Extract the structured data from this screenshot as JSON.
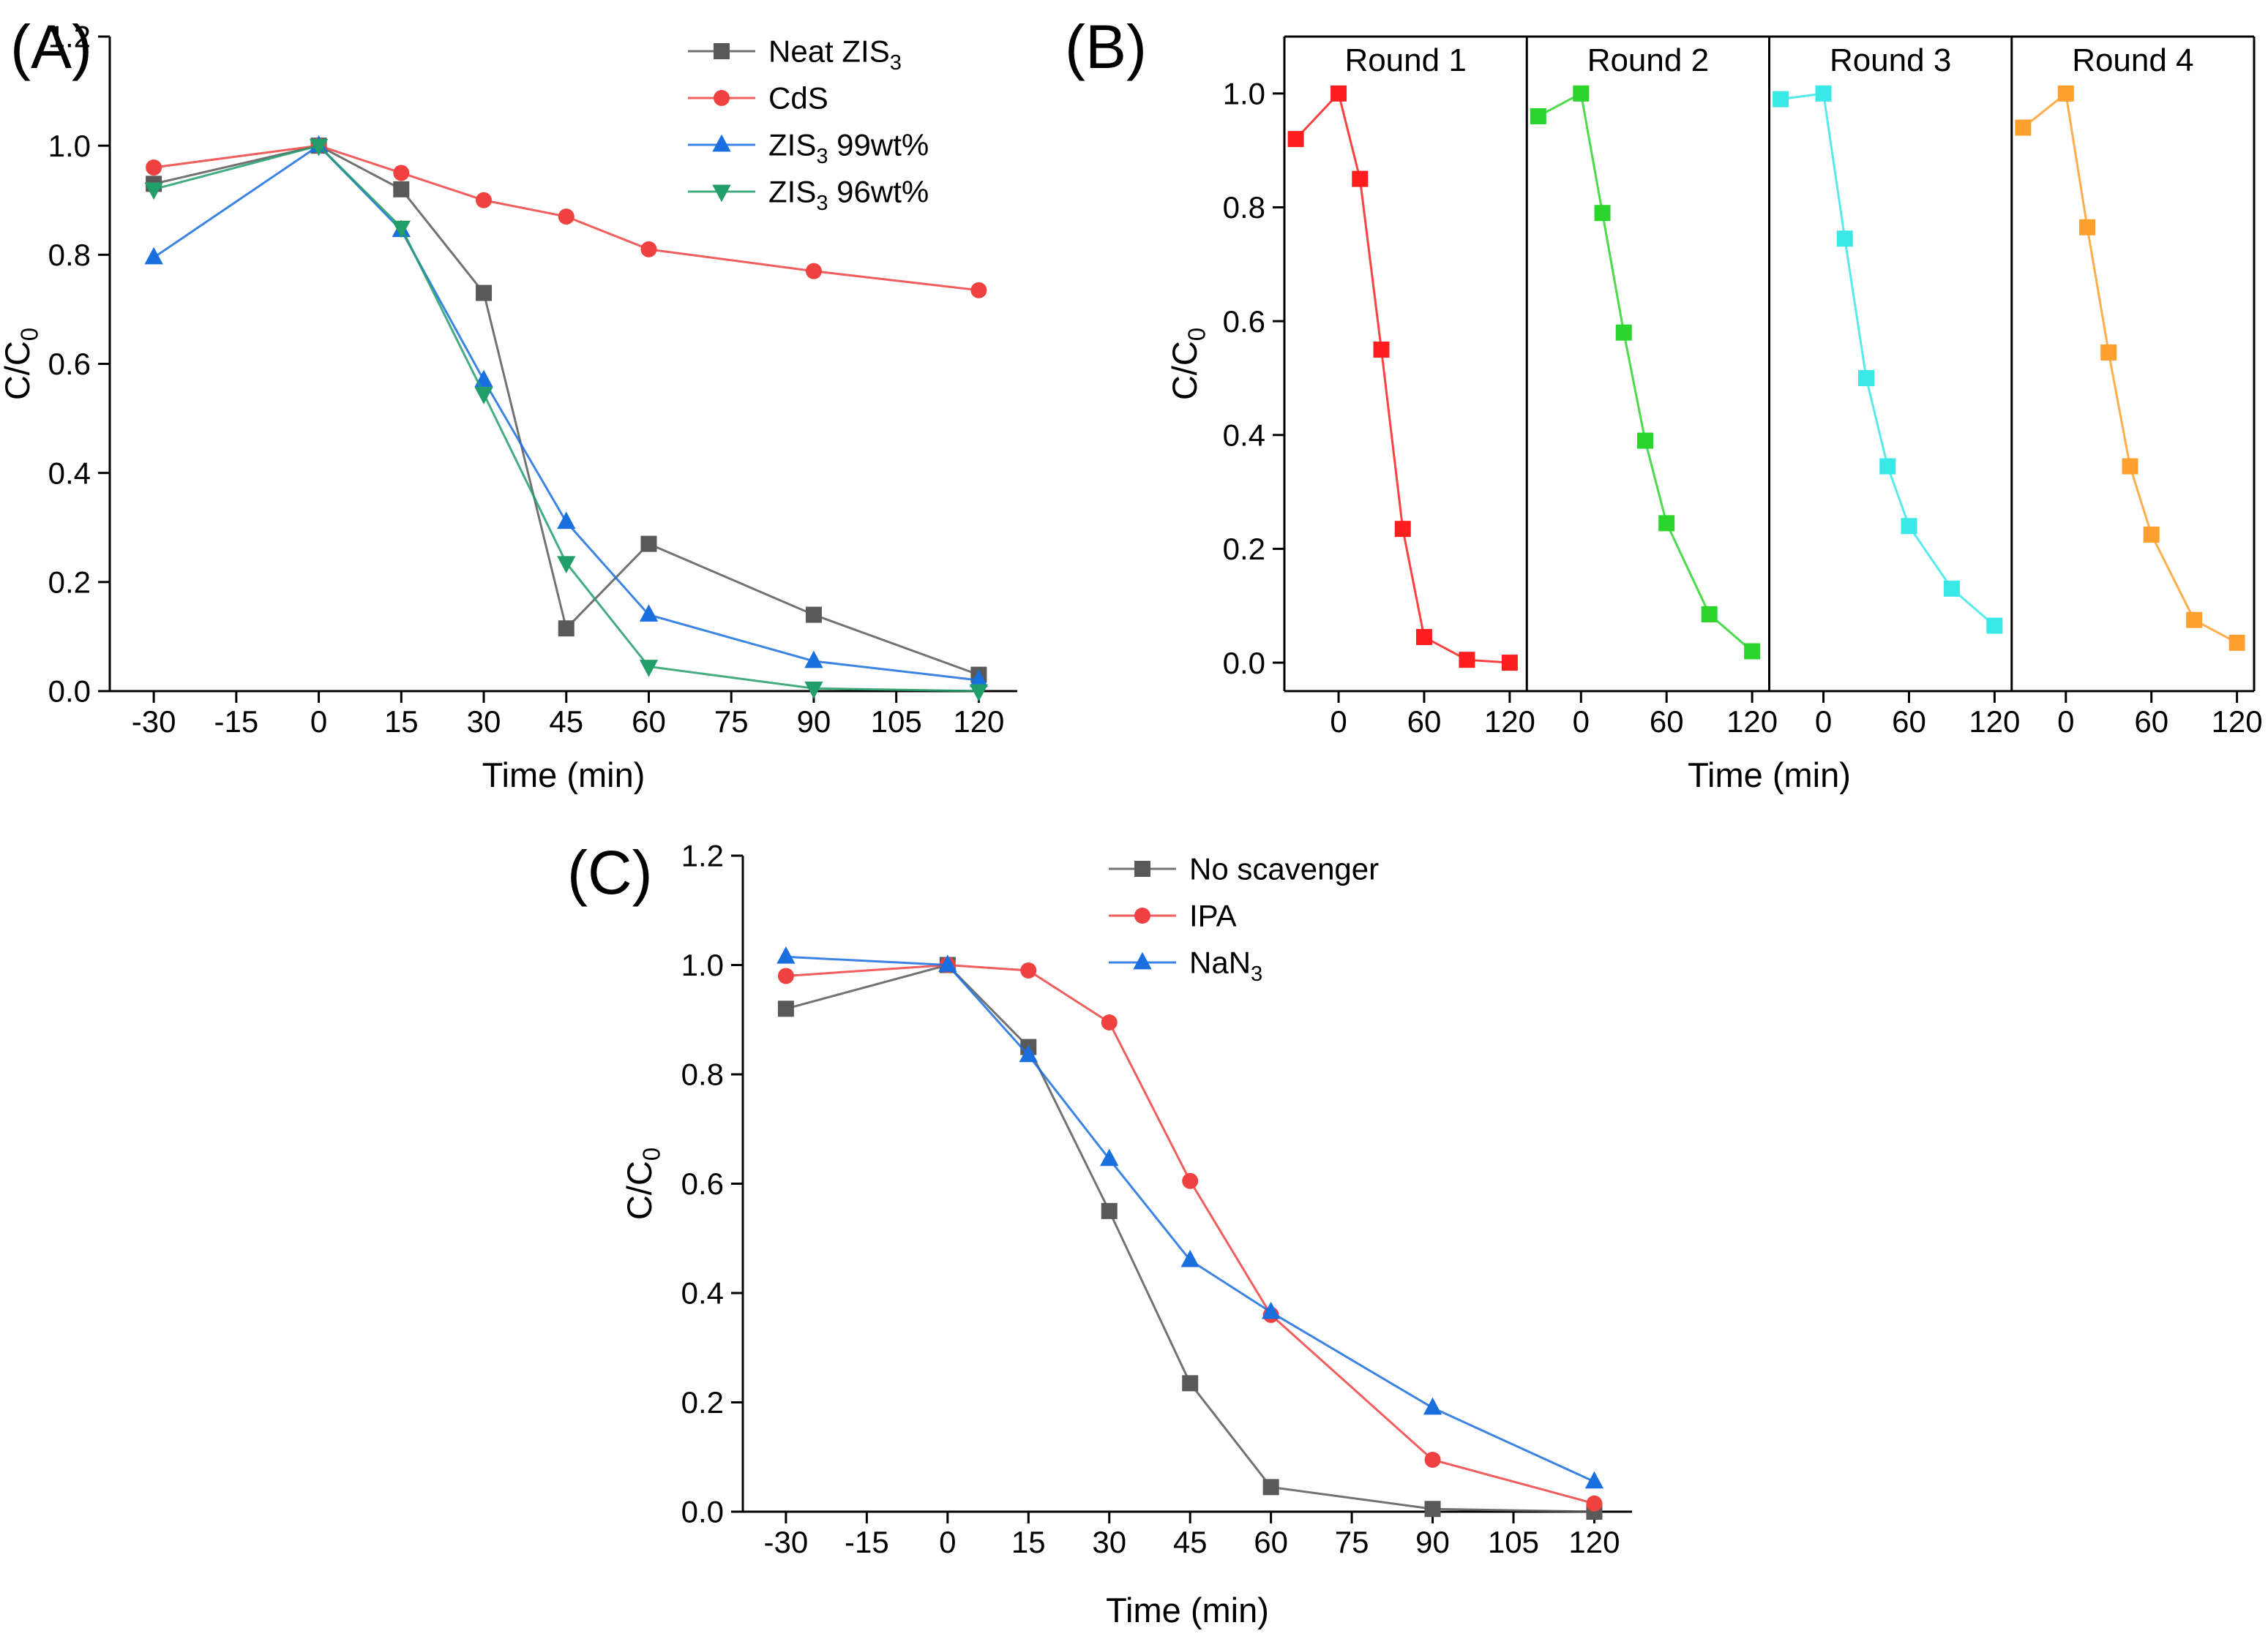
{
  "figure": {
    "background": "#ffffff",
    "panels": [
      {
        "label": "(A)"
      },
      {
        "label": "(B)"
      },
      {
        "label": "(C)"
      }
    ]
  },
  "chart_data": [
    {
      "id": "A",
      "panel_label": "(A)",
      "type": "line",
      "title": "",
      "xlabel": "Time (min)",
      "ylabel": "C/C₀",
      "xlim": [
        -38,
        127
      ],
      "ylim": [
        0,
        1.2
      ],
      "xticks": [
        -30,
        -15,
        0,
        15,
        30,
        45,
        60,
        75,
        90,
        105,
        120
      ],
      "yticks": [
        "0.0",
        "0.2",
        "0.4",
        "0.6",
        "0.8",
        "1.0",
        "1.2"
      ],
      "grid": false,
      "legend_position": "top-right",
      "x": [
        -30,
        0,
        15,
        30,
        45,
        60,
        90,
        120
      ],
      "series": [
        {
          "name": "Neat ZIS₃",
          "marker": "square",
          "color": "#595959",
          "values": [
            0.93,
            1.0,
            0.92,
            0.73,
            0.115,
            0.27,
            0.14,
            0.03
          ]
        },
        {
          "name": "CdS",
          "marker": "circle",
          "color": "#F04141",
          "values": [
            0.96,
            1.0,
            0.95,
            0.9,
            0.87,
            0.81,
            0.77,
            0.735
          ]
        },
        {
          "name": "ZIS₃ 99wt%",
          "marker": "triangle-up",
          "color": "#1A6FDF",
          "values": [
            0.795,
            1.0,
            0.845,
            0.57,
            0.31,
            0.14,
            0.055,
            0.02
          ]
        },
        {
          "name": "ZIS₃ 96wt%",
          "marker": "triangle-down",
          "color": "#229E6B",
          "values": [
            0.92,
            1.0,
            0.85,
            0.545,
            0.235,
            0.045,
            0.005,
            0.0
          ]
        }
      ]
    },
    {
      "id": "B",
      "panel_label": "(B)",
      "type": "line",
      "title": "",
      "xlabel": "Time (min)",
      "ylabel": "C/C₀",
      "xlim": [
        -38,
        132
      ],
      "ylim": [
        -0.05,
        1.1
      ],
      "xticks": [
        0,
        60,
        120
      ],
      "yticks": [
        "0.0",
        "0.2",
        "0.4",
        "0.6",
        "0.8",
        "1.0"
      ],
      "grid": false,
      "boxed": true,
      "x": [
        -30,
        0,
        15,
        30,
        45,
        60,
        90,
        120
      ],
      "subpanels": [
        {
          "title": "Round 1",
          "series": [
            {
              "name": "Round 1",
              "marker": "square",
              "color": "#FF1E1E",
              "values": [
                0.92,
                1.0,
                0.85,
                0.55,
                0.235,
                0.045,
                0.005,
                0.0
              ]
            }
          ]
        },
        {
          "title": "Round 2",
          "series": [
            {
              "name": "Round 2",
              "marker": "square",
              "color": "#2BD52B",
              "values": [
                0.96,
                1.0,
                0.79,
                0.58,
                0.39,
                0.245,
                0.085,
                0.02
              ]
            }
          ]
        },
        {
          "title": "Round 3",
          "series": [
            {
              "name": "Round 3",
              "marker": "square",
              "color": "#3BE8E8",
              "values": [
                0.99,
                1.0,
                0.745,
                0.5,
                0.345,
                0.24,
                0.13,
                0.065
              ]
            }
          ]
        },
        {
          "title": "Round 4",
          "series": [
            {
              "name": "Round 4",
              "marker": "square",
              "color": "#FFA02E",
              "values": [
                0.94,
                1.0,
                0.765,
                0.545,
                0.345,
                0.225,
                0.075,
                0.035
              ]
            }
          ]
        }
      ]
    },
    {
      "id": "C",
      "panel_label": "(C)",
      "type": "line",
      "title": "",
      "xlabel": "Time (min)",
      "ylabel": "C/C₀",
      "xlim": [
        -38,
        127
      ],
      "ylim": [
        0,
        1.2
      ],
      "xticks": [
        -30,
        -15,
        0,
        15,
        30,
        45,
        60,
        75,
        90,
        105,
        120
      ],
      "yticks": [
        "0.0",
        "0.2",
        "0.4",
        "0.6",
        "0.8",
        "1.0",
        "1.2"
      ],
      "grid": false,
      "legend_position": "top-right",
      "x": [
        -30,
        0,
        15,
        30,
        45,
        60,
        90,
        120
      ],
      "series": [
        {
          "name": "No scavenger",
          "marker": "square",
          "color": "#595959",
          "values": [
            0.92,
            1.0,
            0.85,
            0.55,
            0.235,
            0.045,
            0.005,
            0.0
          ]
        },
        {
          "name": "IPA",
          "marker": "circle",
          "color": "#F04141",
          "values": [
            0.98,
            1.0,
            0.99,
            0.895,
            0.605,
            0.36,
            0.095,
            0.015
          ]
        },
        {
          "name": "NaN₃",
          "marker": "triangle-up",
          "color": "#1A6FDF",
          "values": [
            1.015,
            1.0,
            0.835,
            0.645,
            0.46,
            0.365,
            0.19,
            0.055
          ]
        }
      ]
    }
  ]
}
